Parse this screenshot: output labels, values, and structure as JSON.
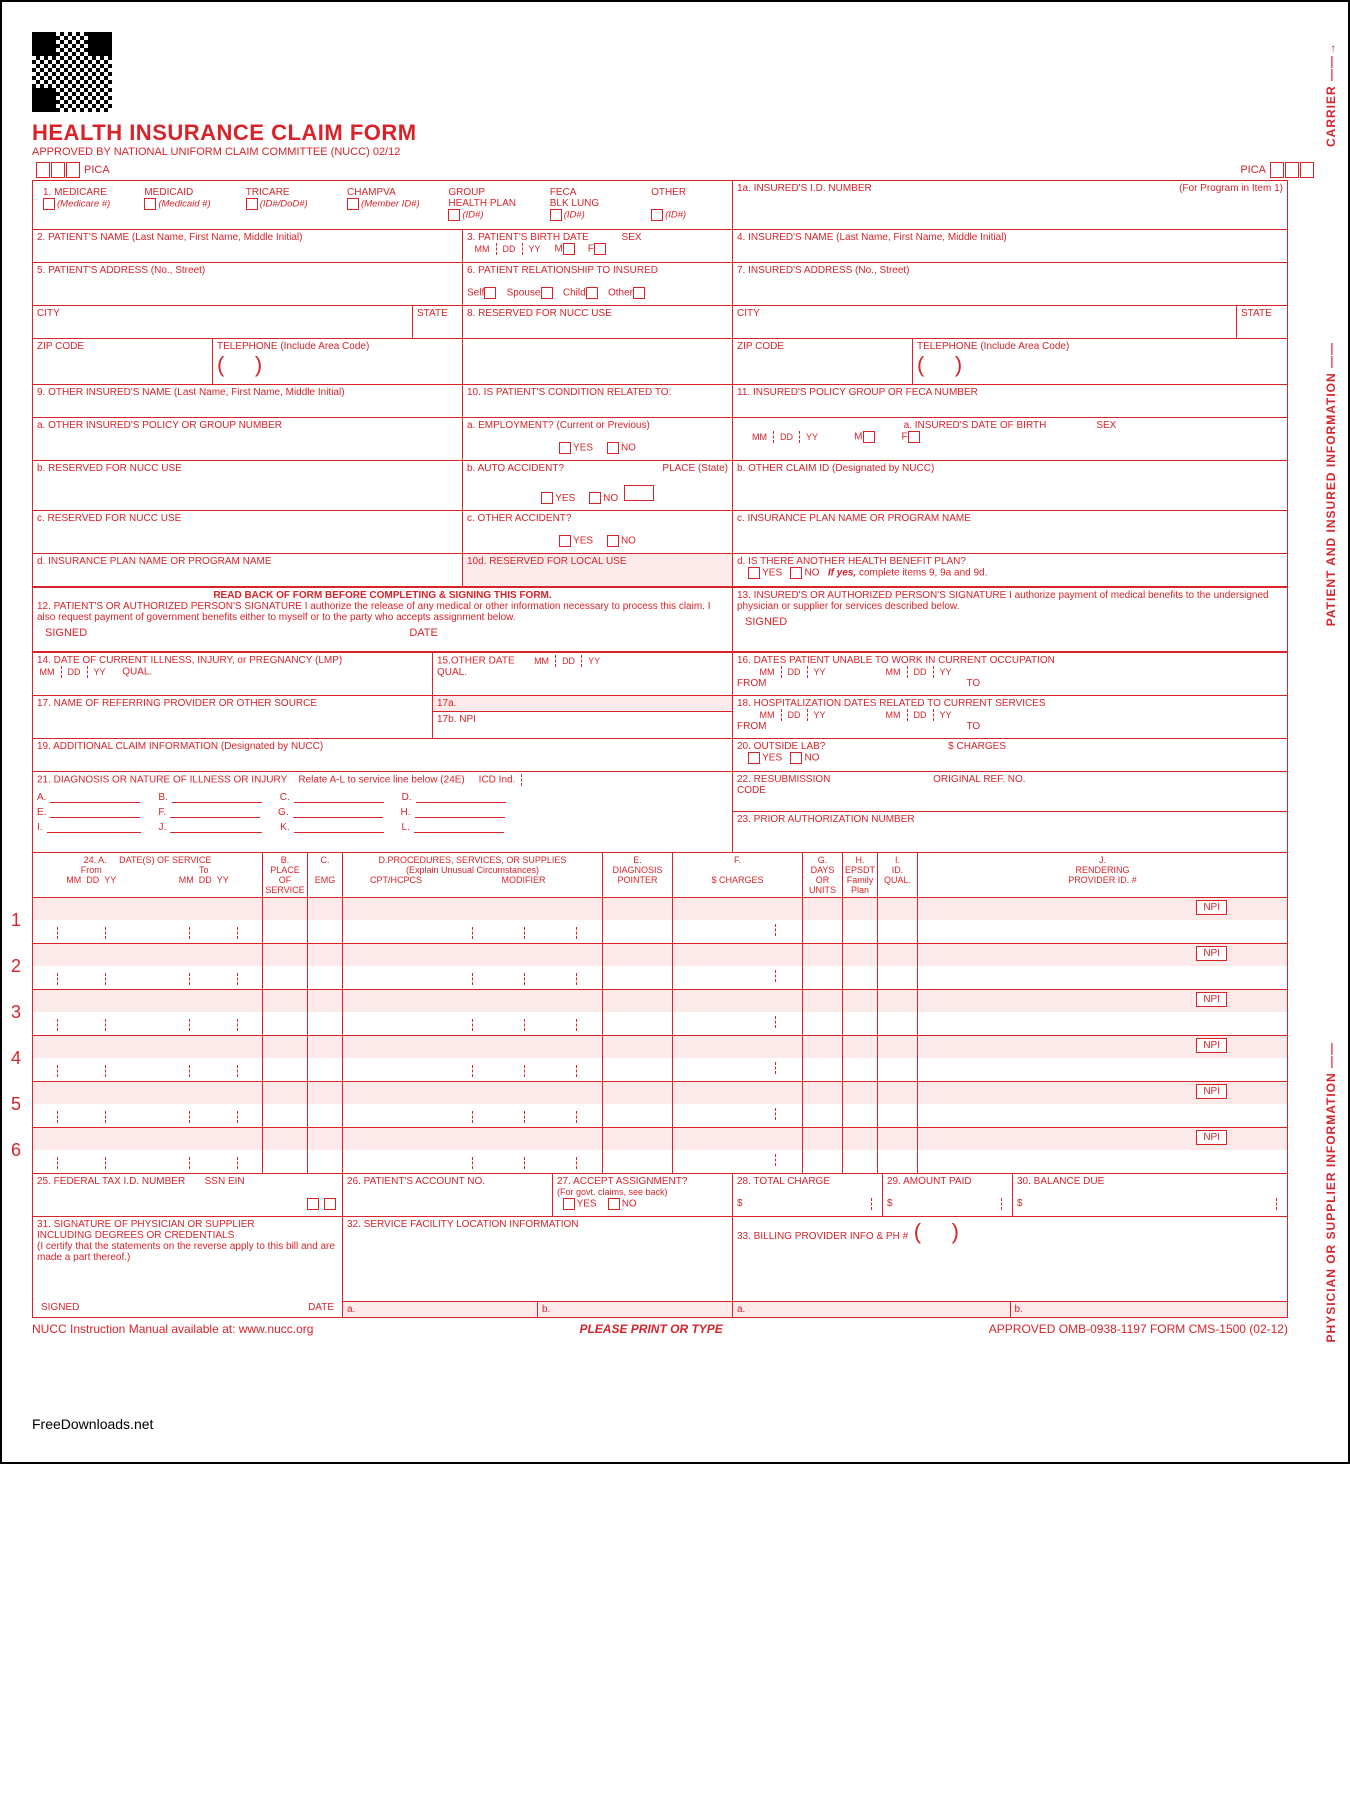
{
  "header": {
    "title": "HEALTH INSURANCE CLAIM FORM",
    "approved": "APPROVED BY NATIONAL UNIFORM CLAIM COMMITTEE (NUCC) 02/12",
    "pica": "PICA"
  },
  "vlabels": {
    "carrier": "CARRIER ——→",
    "patient": "PATIENT AND INSURED INFORMATION ——",
    "physician": "PHYSICIAN OR SUPPLIER INFORMATION ——"
  },
  "row1": {
    "medicare": "1.  MEDICARE",
    "medicare_sub": "(Medicare #)",
    "medicaid": "MEDICAID",
    "medicaid_sub": "(Medicaid #)",
    "tricare": "TRICARE",
    "tricare_sub": "(ID#/DoD#)",
    "champva": "CHAMPVA",
    "champva_sub": "(Member ID#)",
    "group": "GROUP",
    "group2": "HEALTH PLAN",
    "group_sub": "(ID#)",
    "feca": "FECA",
    "feca2": "BLK LUNG",
    "feca_sub": "(ID#)",
    "other": "OTHER",
    "other_sub": "(ID#)",
    "insured_id": "1a. INSURED'S I.D. NUMBER",
    "for_program": "(For Program in Item 1)"
  },
  "row2": "2. PATIENT'S NAME (Last Name, First Name, Middle Initial)",
  "row3": {
    "title": "3. PATIENT'S BIRTH DATE",
    "mm": "MM",
    "dd": "DD",
    "yy": "YY",
    "sex": "SEX",
    "m": "M",
    "f": "F"
  },
  "row4": "4. INSURED'S NAME (Last Name, First Name, Middle Initial)",
  "row5": "5. PATIENT'S ADDRESS (No., Street)",
  "row6": {
    "title": "6. PATIENT RELATIONSHIP TO INSURED",
    "self": "Self",
    "spouse": "Spouse",
    "child": "Child",
    "other": "Other"
  },
  "row7": "7. INSURED'S ADDRESS (No., Street)",
  "city": "CITY",
  "state": "STATE",
  "zip": "ZIP CODE",
  "tele": "TELEPHONE (Include Area Code)",
  "row8": "8. RESERVED FOR NUCC USE",
  "row9": "9. OTHER INSURED'S NAME (Last Name, First Name, Middle Initial)",
  "row9a": "a. OTHER INSURED'S POLICY OR GROUP NUMBER",
  "row9b": "b. RESERVED FOR NUCC USE",
  "row9c": "c. RESERVED FOR NUCC USE",
  "row9d": "d. INSURANCE PLAN NAME OR PROGRAM NAME",
  "row10": "10. IS PATIENT'S CONDITION RELATED TO:",
  "row10a": "a. EMPLOYMENT? (Current or Previous)",
  "row10b": "b. AUTO ACCIDENT?",
  "row10b_place": "PLACE (State)",
  "row10c": "c. OTHER ACCIDENT?",
  "row10d": "10d. RESERVED FOR LOCAL USE",
  "yes": "YES",
  "no": "NO",
  "row11": "11. INSURED'S POLICY GROUP OR FECA NUMBER",
  "row11a": {
    "title": "a. INSURED'S DATE OF BIRTH",
    "sex": "SEX"
  },
  "row11b": "b. OTHER CLAIM ID (Designated by NUCC)",
  "row11c": "c. INSURANCE PLAN NAME OR PROGRAM NAME",
  "row11d": {
    "title": "d. IS THERE ANOTHER HEALTH BENEFIT PLAN?",
    "hint": "If yes,",
    "hint2": " complete items 9, 9a and 9d."
  },
  "row12": {
    "bold": "READ BACK OF FORM BEFORE COMPLETING & SIGNING THIS FORM.",
    "text": "12. PATIENT'S OR AUTHORIZED PERSON'S SIGNATURE   I authorize the release of any medical or other information necessary to process this claim. I also request payment of government benefits either to myself or to the party who accepts assignment below."
  },
  "row13": "13. INSURED'S OR AUTHORIZED PERSON'S SIGNATURE I authorize payment of medical benefits to the undersigned physician or supplier for services described below.",
  "signed": "SIGNED",
  "date": "DATE",
  "row14": "14. DATE OF CURRENT ILLNESS, INJURY, or PREGNANCY (LMP)",
  "qual": "QUAL.",
  "row15": "15.OTHER DATE",
  "row16": "16. DATES PATIENT UNABLE TO WORK IN CURRENT OCCUPATION",
  "from": "FROM",
  "to": "TO",
  "row17": "17. NAME OF REFERRING PROVIDER OR OTHER SOURCE",
  "row17a": "17a.",
  "row17b": "17b.",
  "npi": "NPI",
  "row18": "18. HOSPITALIZATION DATES RELATED TO CURRENT SERVICES",
  "row19": "19. ADDITIONAL CLAIM INFORMATION (Designated by NUCC)",
  "row20": {
    "title": "20. OUTSIDE LAB?",
    "charges": "$ CHARGES"
  },
  "row21": {
    "title": "21. DIAGNOSIS OR NATURE OF ILLNESS OR INJURY",
    "sub": "Relate A-L to service line below (24E)",
    "icd": "ICD Ind."
  },
  "diag_labels": {
    "a": "A.",
    "b": "B.",
    "c": "C.",
    "d": "D.",
    "e": "E.",
    "f": "F.",
    "g": "G.",
    "h": "H.",
    "i": "I.",
    "j": "J.",
    "k": "K.",
    "l": "L."
  },
  "row22": {
    "title": "22. RESUBMISSION",
    "sub": "CODE",
    "orig": "ORIGINAL REF. NO."
  },
  "row23": "23. PRIOR AUTHORIZATION NUMBER",
  "row24": {
    "a": "24.  A.",
    "dates": "DATE(S) OF SERVICE",
    "from": "From",
    "to": "To",
    "b": "B.",
    "place": "PLACE OF",
    "service": "SERVICE",
    "c": "C.",
    "emg": "EMG",
    "d": "D.PROCEDURES, SERVICES, OR SUPPLIES",
    "explain": "(Explain Unusual Circumstances)",
    "cpt": "CPT/HCPCS",
    "mod": "MODIFIER",
    "e": "E.",
    "diag": "DIAGNOSIS",
    "pointer": "POINTER",
    "f": "F.",
    "charges": "$ CHARGES",
    "g": "G.",
    "days": "DAYS",
    "or": "OR",
    "units": "UNITS",
    "h": "H.",
    "epsdt": "EPSDT",
    "family": "Family",
    "plan": "Plan",
    "i": "I.",
    "id": "ID.",
    "qual": "QUAL.",
    "j": "J.",
    "render": "RENDERING",
    "provider": "PROVIDER ID. #",
    "mm": "MM",
    "dd": "DD",
    "yy": "YY"
  },
  "service_rows": [
    "1",
    "2",
    "3",
    "4",
    "5",
    "6"
  ],
  "row25": {
    "title": "25. FEDERAL TAX I.D. NUMBER",
    "ssn": "SSN",
    "ein": "EIN"
  },
  "row26": "26. PATIENT'S ACCOUNT NO.",
  "row27": {
    "title": "27. ACCEPT ASSIGNMENT?",
    "sub": "(For govt. claims, see back)"
  },
  "row28": "28. TOTAL CHARGE",
  "row29": "29. AMOUNT PAID",
  "row30": "30. BALANCE DUE",
  "dollar": "$",
  "row31": {
    "title": "31. SIGNATURE OF PHYSICIAN OR SUPPLIER",
    "sub": "INCLUDING DEGREES OR CREDENTIALS",
    "cert": "(I certify that the statements on the reverse apply to this bill and are made a part thereof.)"
  },
  "row32": "32. SERVICE FACILITY LOCATION INFORMATION",
  "row33": "33. BILLING PROVIDER INFO & PH #",
  "a_dot": "a.",
  "b_dot": "b.",
  "footer": {
    "left": "NUCC Instruction Manual available at: www.nucc.org",
    "center": "PLEASE PRINT OR TYPE",
    "right": "APPROVED OMB-0938-1197 FORM CMS-1500 (02-12)"
  },
  "watermark": "FreeDownloads.net"
}
